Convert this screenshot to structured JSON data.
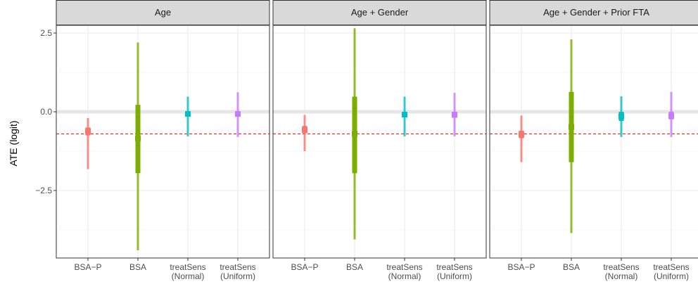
{
  "chart_data": {
    "type": "interval",
    "ylabel": "ATE (logit)",
    "xlabel": "",
    "ylim": [
      -4.7,
      2.5
    ],
    "yticks": [
      2.5,
      0.0,
      -2.5
    ],
    "ytick_labels": [
      "2.5",
      "0.0",
      "−2.5"
    ],
    "categories": [
      {
        "label": [
          "BSA−P"
        ],
        "color": "#F8766D"
      },
      {
        "label": [
          "BSA"
        ],
        "color": "#7CAE00"
      },
      {
        "label": [
          "treatSens",
          "(Normal)"
        ],
        "color": "#00BFC4"
      },
      {
        "label": [
          "treatSens",
          "(Uniform)"
        ],
        "color": "#C77CFF"
      }
    ],
    "reference_lines": {
      "zero": {
        "y": 0.0,
        "color": "#e6e6e6"
      },
      "dashed": {
        "y": -0.7,
        "color": "#ff0000"
      }
    },
    "panels": [
      {
        "title": "Age",
        "estimates": [
          {
            "point": -0.62,
            "inner": [
              -0.5,
              -0.75
            ],
            "outer": [
              -0.2,
              -1.82
            ]
          },
          {
            "point": -0.85,
            "inner": [
              0.22,
              -1.95
            ],
            "outer": [
              2.2,
              -4.4
            ]
          },
          {
            "point": -0.07,
            "inner": [
              -0.02,
              -0.12
            ],
            "outer": [
              0.48,
              -0.78
            ]
          },
          {
            "point": -0.07,
            "inner": [
              -0.02,
              -0.14
            ],
            "outer": [
              0.62,
              -0.8
            ]
          }
        ]
      },
      {
        "title": "Age + Gender",
        "estimates": [
          {
            "point": -0.58,
            "inner": [
              -0.45,
              -0.68
            ],
            "outer": [
              -0.1,
              -1.25
            ]
          },
          {
            "point": -0.7,
            "inner": [
              0.48,
              -1.95
            ],
            "outer": [
              2.65,
              -4.05
            ]
          },
          {
            "point": -0.09,
            "inner": [
              -0.02,
              -0.17
            ],
            "outer": [
              0.48,
              -0.78
            ]
          },
          {
            "point": -0.09,
            "inner": [
              0.0,
              -0.19
            ],
            "outer": [
              0.6,
              -0.78
            ]
          }
        ]
      },
      {
        "title": "Age + Gender + Prior FTA",
        "estimates": [
          {
            "point": -0.72,
            "inner": [
              -0.6,
              -0.84
            ],
            "outer": [
              -0.12,
              -1.6
            ]
          },
          {
            "point": -0.48,
            "inner": [
              0.63,
              -1.6
            ],
            "outer": [
              2.3,
              -3.85
            ]
          },
          {
            "point": -0.14,
            "inner": [
              0.0,
              -0.29
            ],
            "outer": [
              0.49,
              -0.8
            ]
          },
          {
            "point": -0.13,
            "inner": [
              0.0,
              -0.24
            ],
            "outer": [
              0.63,
              -0.8
            ]
          }
        ]
      }
    ]
  }
}
